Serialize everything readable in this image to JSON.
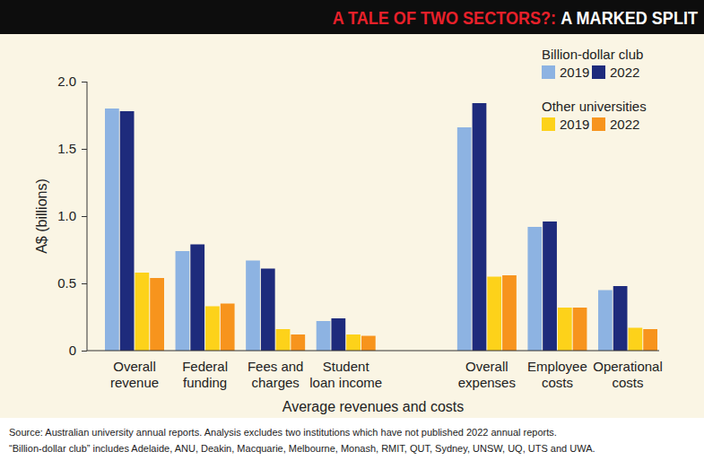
{
  "chart_data": {
    "type": "bar",
    "title": "A TALE OF TWO SECTORS?:",
    "subtitle": "A MARKED SPLIT",
    "y_label": "A$ (billions)",
    "x_label": "Average revenues and costs",
    "notes": [
      "Source: Australian university annual reports. Analysis excludes two institutions which have not published 2022 annual reports.",
      "“Billion-dollar club” includes Adelaide, ANU, Deakin, Macquarie, Melbourne, Monash, RMIT, QUT, Sydney, UNSW, UQ, UTS and UWA."
    ],
    "categories": [
      "Overall\nrevenue",
      "Federal\nfunding",
      "Fees and\ncharges",
      "Student\nloan income",
      null,
      "Overall\nexpenses",
      "Employee\ncosts",
      "Operational\ncosts"
    ],
    "series": [
      {
        "name": "2019",
        "group": "Billion-dollar club",
        "color": "#8db3e2",
        "values": [
          1.8,
          0.74,
          0.67,
          0.22,
          null,
          1.66,
          0.92,
          0.45
        ]
      },
      {
        "name": "2022",
        "group": "Billion-dollar club",
        "color": "#1e2b7c",
        "values": [
          1.78,
          0.79,
          0.61,
          0.24,
          null,
          1.84,
          0.96,
          0.48
        ]
      },
      {
        "name": "2019",
        "group": "Other universities",
        "color": "#fdd21a",
        "values": [
          0.58,
          0.33,
          0.16,
          0.12,
          null,
          0.55,
          0.32,
          0.17
        ]
      },
      {
        "name": "2022",
        "group": "Other universities",
        "color": "#f7941d",
        "values": [
          0.54,
          0.35,
          0.12,
          0.11,
          null,
          0.56,
          0.32,
          0.16
        ]
      }
    ],
    "ylim": [
      0,
      2
    ],
    "yticks": [
      0,
      0.5,
      {
        "value": 1,
        "label": "1.0"
      },
      1.5,
      {
        "value": 2,
        "label": "2.0"
      }
    ],
    "grid": false
  }
}
